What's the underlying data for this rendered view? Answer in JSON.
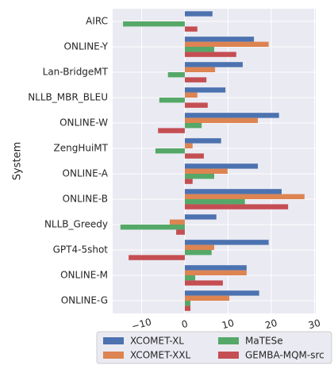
{
  "chart_data": {
    "type": "barh",
    "ylabel": "System",
    "categories": [
      "AIRC",
      "ONLINE-Y",
      "Lan-BridgeMT",
      "NLLB_MBR_BLEU",
      "ONLINE-W",
      "ZengHuiMT",
      "ONLINE-A",
      "ONLINE-B",
      "NLLB_Greedy",
      "GPT4-5shot",
      "ONLINE-M",
      "ONLINE-G"
    ],
    "series": [
      {
        "name": "XCOMET-XL",
        "color": "#4c72b0",
        "values": [
          6.4,
          16.0,
          13.4,
          9.4,
          21.8,
          8.4,
          16.9,
          22.4,
          7.3,
          19.4,
          14.3,
          17.2
        ]
      },
      {
        "name": "XCOMET-XXL",
        "color": "#dd8452",
        "values": [
          null,
          19.4,
          7.0,
          2.9,
          16.9,
          1.8,
          9.9,
          27.7,
          -3.5,
          6.8,
          14.3,
          10.3
        ]
      },
      {
        "name": "MaTESe",
        "color": "#55a868",
        "values": [
          -14.3,
          6.8,
          -3.9,
          -5.9,
          3.9,
          -6.8,
          6.8,
          13.9,
          -14.9,
          6.2,
          2.4,
          1.3
        ]
      },
      {
        "name": "GEMBA-MQM-src",
        "color": "#c44e52",
        "values": [
          2.9,
          11.9,
          5.0,
          5.3,
          -6.2,
          4.4,
          1.8,
          23.9,
          -2.0,
          -13.0,
          8.8,
          1.3
        ]
      }
    ],
    "xlim": [
      -16.7,
      30.3
    ],
    "xticks": [
      {
        "value": -10,
        "label": "−10"
      },
      0,
      10,
      20,
      30
    ],
    "grid": true,
    "legend": "below"
  }
}
